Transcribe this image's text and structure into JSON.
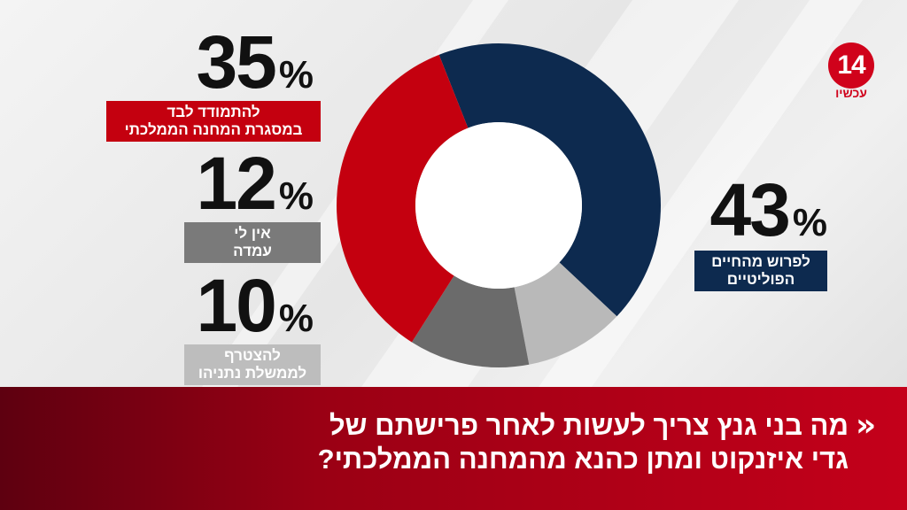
{
  "chart_data": {
    "type": "pie",
    "slices": [
      {
        "value": 43,
        "pct_text": "43",
        "label_line1": "לפרוש מהחיים",
        "label_line2": "הפוליטיים",
        "color": "#0d2a4f"
      },
      {
        "value": 10,
        "pct_text": "10",
        "label_line1": "להצטרף",
        "label_line2": "לממשלת נתניהו",
        "color": "#b9b9b9"
      },
      {
        "value": 12,
        "pct_text": "12",
        "label_line1": "אין לי",
        "label_line2": "עמדה",
        "color": "#6b6b6b"
      },
      {
        "value": 35,
        "pct_text": "35",
        "label_line1": "להתמודד לבד",
        "label_line2": "במסגרת המחנה הממלכתי",
        "color": "#c4000f"
      }
    ],
    "percent_sign": "%",
    "title": "",
    "legend": "labels-beside"
  },
  "logo": {
    "number": "14",
    "sub": "עכשיו",
    "color": "#d0021b"
  },
  "banner": {
    "arrows": "»",
    "question_line1": "מה בני גנץ צריך לעשות לאחר פרישתם של",
    "question_line2": "גדי איזנקוט ומתן כהנא מהמחנה הממלכתי?"
  }
}
